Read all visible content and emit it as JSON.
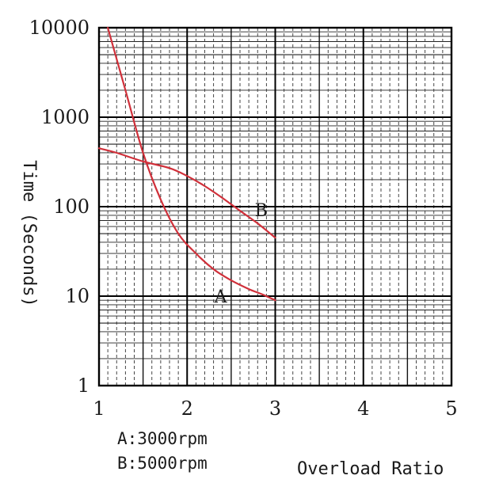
{
  "chart_data": {
    "type": "line",
    "xlabel": "Overload Ratio",
    "ylabel": "Time (Seconds)",
    "x_scale": "linear",
    "y_scale": "log",
    "xlim": [
      1,
      5
    ],
    "ylim": [
      1,
      10000
    ],
    "x_ticks": [
      "1",
      "2",
      "3",
      "4",
      "5"
    ],
    "y_ticks": [
      "1",
      "10",
      "100",
      "1000",
      "10000"
    ],
    "grid": true,
    "series": [
      {
        "name": "A",
        "color": "#d0303a",
        "x": [
          1.1,
          1.3,
          1.5,
          1.7,
          1.9,
          2.1,
          2.3,
          2.5,
          2.7,
          2.85,
          3.0
        ],
        "y": [
          10000,
          2000,
          400,
          120,
          50,
          30,
          20,
          15,
          12,
          10.5,
          9
        ]
      },
      {
        "name": "B",
        "color": "#d0303a",
        "x": [
          1.0,
          1.2,
          1.5,
          1.8,
          2.0,
          2.2,
          2.4,
          2.6,
          2.8,
          3.0
        ],
        "y": [
          450,
          400,
          320,
          270,
          220,
          170,
          125,
          90,
          65,
          45
        ]
      }
    ],
    "legend": [
      {
        "series": "A",
        "text": "A:3000rpm"
      },
      {
        "series": "B",
        "text": "B:5000rpm"
      }
    ]
  }
}
